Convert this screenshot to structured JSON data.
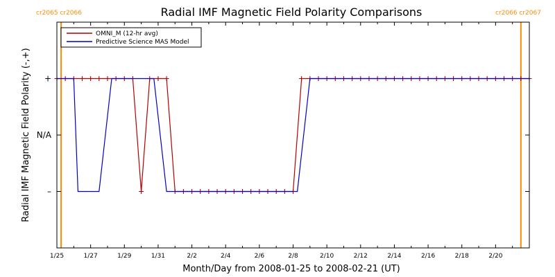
{
  "chart_data": {
    "type": "line",
    "title": "Radial IMF Magnetic Field Polarity Comparisons",
    "xlabel": "Month/Day from 2008-01-25 to 2008-02-21 (UT)",
    "ylabel": "Radial IMF Magnetic Field Polarity (-,+)",
    "x_tick_labels": [
      "1/25",
      "1/27",
      "1/29",
      "1/31",
      "2/2",
      "2/4",
      "2/6",
      "2/8",
      "2/10",
      "2/12",
      "2/14",
      "2/16",
      "2/18",
      "2/20"
    ],
    "y_tick_labels": [
      "+",
      "N/A",
      "–"
    ],
    "y_levels": {
      "+": 1,
      "N/A": 0,
      "–": -1
    },
    "xlim": [
      "2008-01-25",
      "2008-02-22"
    ],
    "ylim": [
      -2,
      2
    ],
    "carrington_markers": [
      {
        "date": "2008-01-25 06:00",
        "label": "cr2065 cr2066",
        "position": "left"
      },
      {
        "date": "2008-02-21 12:00",
        "label": "cr2066 cr2067",
        "position": "right"
      }
    ],
    "colors": {
      "omni": "#b40000",
      "model": "#0000c8",
      "carrington": "#ff8c00",
      "axes": "#000000"
    },
    "legend": {
      "placement": "top-left"
    },
    "series": [
      {
        "name": "OMNI_M (12-hr avg)",
        "color": "#b40000",
        "marker": "plus",
        "points": [
          [
            "2008-01-25 00:00",
            1
          ],
          [
            "2008-01-25 12:00",
            1
          ],
          [
            "2008-01-26 00:00",
            1
          ],
          [
            "2008-01-26 12:00",
            1
          ],
          [
            "2008-01-27 00:00",
            1
          ],
          [
            "2008-01-27 12:00",
            1
          ],
          [
            "2008-01-28 00:00",
            1
          ],
          [
            "2008-01-28 12:00",
            1
          ],
          [
            "2008-01-29 00:00",
            1
          ],
          [
            "2008-01-29 12:00",
            1
          ],
          [
            "2008-01-30 00:00",
            -1
          ],
          [
            "2008-01-30 12:00",
            1
          ],
          [
            "2008-01-31 00:00",
            1
          ],
          [
            "2008-01-31 12:00",
            1
          ],
          [
            "2008-02-01 00:00",
            -1
          ],
          [
            "2008-02-01 12:00",
            -1
          ],
          [
            "2008-02-02 00:00",
            -1
          ],
          [
            "2008-02-02 12:00",
            -1
          ],
          [
            "2008-02-03 00:00",
            -1
          ],
          [
            "2008-02-03 12:00",
            -1
          ],
          [
            "2008-02-04 00:00",
            -1
          ],
          [
            "2008-02-04 12:00",
            -1
          ],
          [
            "2008-02-05 00:00",
            -1
          ],
          [
            "2008-02-05 12:00",
            -1
          ],
          [
            "2008-02-06 00:00",
            -1
          ],
          [
            "2008-02-06 12:00",
            -1
          ],
          [
            "2008-02-07 00:00",
            -1
          ],
          [
            "2008-02-07 12:00",
            -1
          ],
          [
            "2008-02-08 00:00",
            -1
          ],
          [
            "2008-02-08 12:00",
            1
          ],
          [
            "2008-02-09 00:00",
            1
          ],
          [
            "2008-02-09 12:00",
            1
          ],
          [
            "2008-02-10 00:00",
            1
          ],
          [
            "2008-02-10 12:00",
            1
          ],
          [
            "2008-02-11 00:00",
            1
          ],
          [
            "2008-02-11 12:00",
            1
          ],
          [
            "2008-02-12 00:00",
            1
          ],
          [
            "2008-02-12 12:00",
            1
          ],
          [
            "2008-02-13 00:00",
            1
          ],
          [
            "2008-02-13 12:00",
            1
          ],
          [
            "2008-02-14 00:00",
            1
          ],
          [
            "2008-02-14 12:00",
            1
          ],
          [
            "2008-02-15 00:00",
            1
          ],
          [
            "2008-02-15 12:00",
            1
          ],
          [
            "2008-02-16 00:00",
            1
          ],
          [
            "2008-02-16 12:00",
            1
          ],
          [
            "2008-02-17 00:00",
            1
          ],
          [
            "2008-02-17 12:00",
            1
          ],
          [
            "2008-02-18 00:00",
            1
          ],
          [
            "2008-02-18 12:00",
            1
          ],
          [
            "2008-02-19 00:00",
            1
          ],
          [
            "2008-02-19 12:00",
            1
          ],
          [
            "2008-02-20 00:00",
            1
          ],
          [
            "2008-02-20 12:00",
            1
          ],
          [
            "2008-02-21 00:00",
            1
          ],
          [
            "2008-02-21 12:00",
            1
          ],
          [
            "2008-02-22 00:00",
            1
          ]
        ]
      },
      {
        "name": "Predictive Science MAS Model",
        "color": "#0000c8",
        "marker": "none",
        "points": [
          [
            "2008-01-25 00:00",
            1
          ],
          [
            "2008-01-26 00:00",
            1
          ],
          [
            "2008-01-26 06:00",
            -1
          ],
          [
            "2008-01-27 12:00",
            -1
          ],
          [
            "2008-01-28 06:00",
            1
          ],
          [
            "2008-01-30 12:00",
            1
          ],
          [
            "2008-01-30 18:00",
            1
          ],
          [
            "2008-01-31 12:00",
            -1
          ],
          [
            "2008-02-08 06:00",
            -1
          ],
          [
            "2008-02-09 00:00",
            1
          ],
          [
            "2008-02-22 00:00",
            1
          ]
        ]
      }
    ]
  }
}
